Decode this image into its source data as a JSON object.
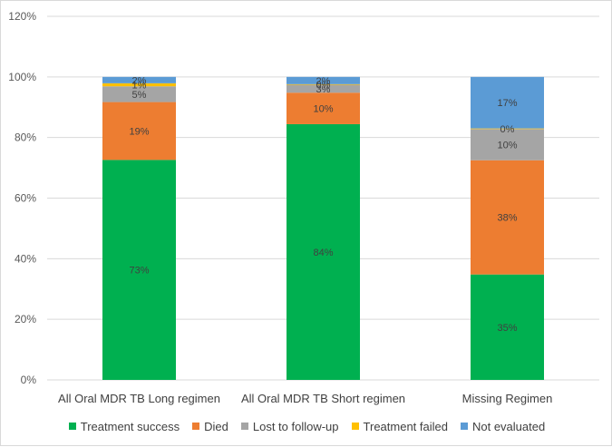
{
  "chart_data": {
    "type": "stacked-bar",
    "title": "",
    "xlabel": "",
    "ylabel": "",
    "ylim": [
      0,
      120
    ],
    "y_ticks": [
      "0%",
      "20%",
      "40%",
      "60%",
      "80%",
      "100%",
      "120%"
    ],
    "y_tick_values": [
      0,
      20,
      40,
      60,
      80,
      100,
      120
    ],
    "categories": [
      "All Oral MDR TB Long regimen",
      "All Oral MDR TB Short regimen",
      "Missing Regimen"
    ],
    "series": [
      {
        "name": "Treatment success",
        "color": "#00b050",
        "values": [
          72.6,
          84.4,
          34.8
        ],
        "labels": [
          "73%",
          "84%",
          "35%"
        ]
      },
      {
        "name": "Died",
        "color": "#ed7d31",
        "values": [
          19.1,
          10.4,
          37.7
        ],
        "labels": [
          "19%",
          "10%",
          "38%"
        ]
      },
      {
        "name": "Lost to follow-up",
        "color": "#a5a5a5",
        "values": [
          5.2,
          2.6,
          10.3
        ],
        "labels": [
          "5%",
          "3%",
          "10%"
        ]
      },
      {
        "name": "Treatment failed",
        "color": "#ffc000",
        "values": [
          1.0,
          0.2,
          0.2
        ],
        "labels": [
          "1%",
          "0%",
          "0%"
        ]
      },
      {
        "name": "Not evaluated",
        "color": "#5b9bd5",
        "values": [
          2.1,
          2.4,
          17.0
        ],
        "labels": [
          "2%",
          "2%",
          "17%"
        ]
      }
    ],
    "grid": true,
    "legend_position": "bottom"
  }
}
